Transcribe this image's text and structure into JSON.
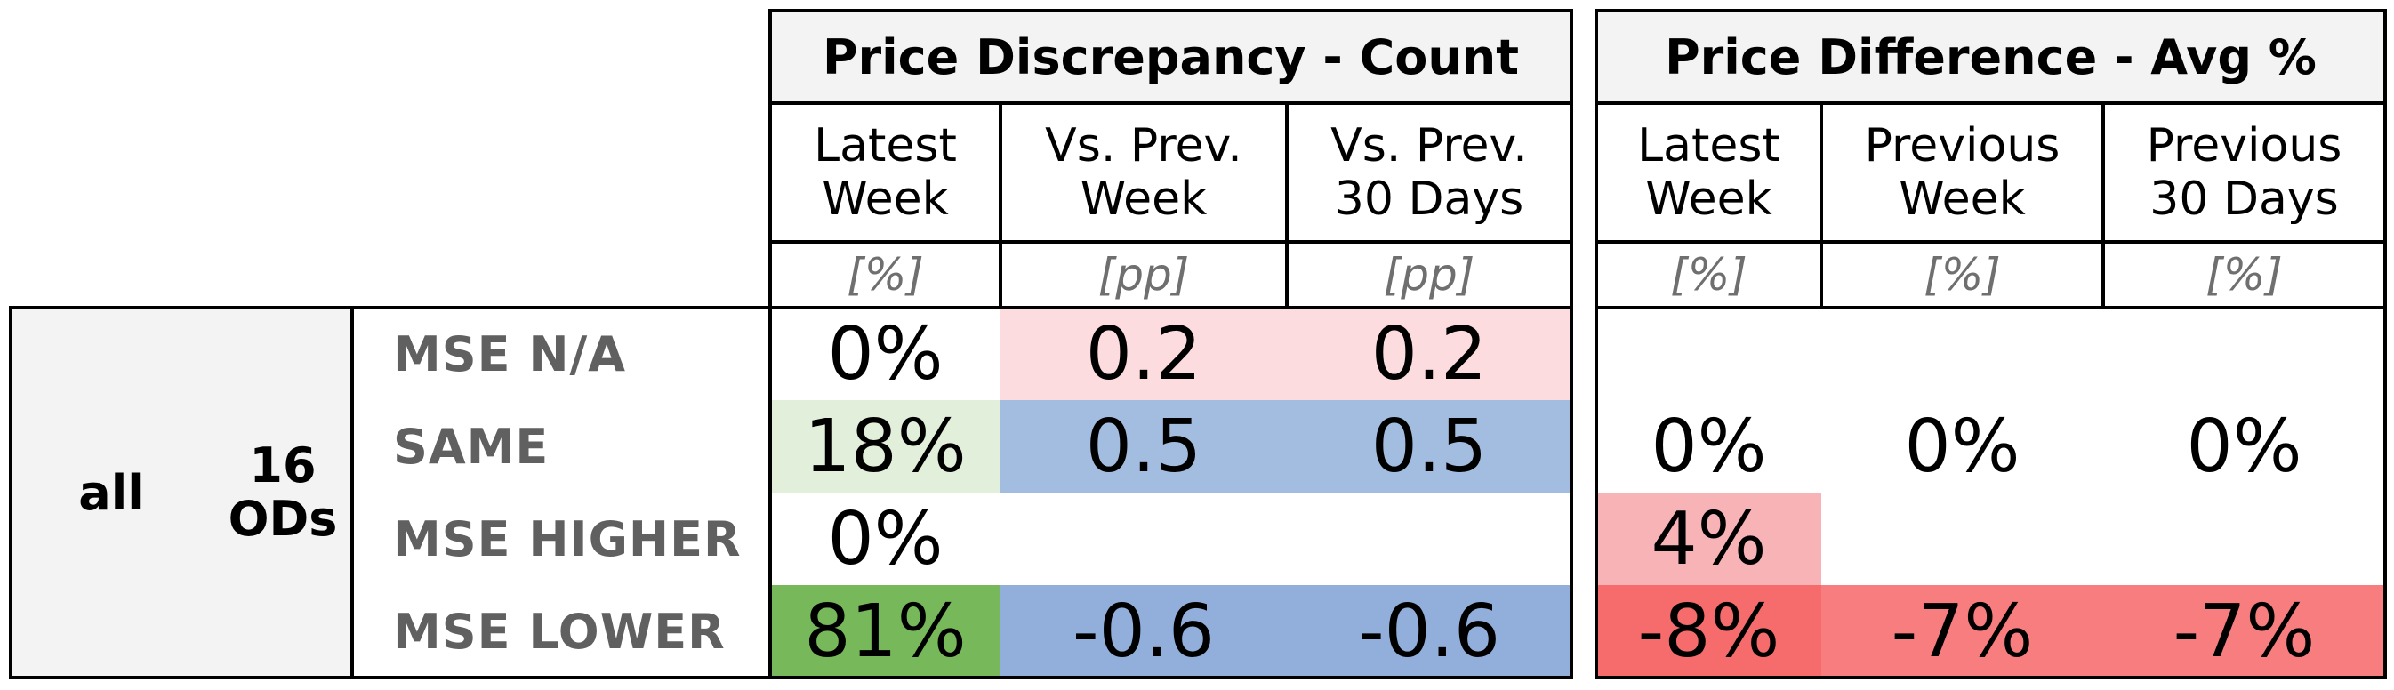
{
  "panels": [
    {
      "title": "Price Discrepancy - Count",
      "columns": [
        {
          "label": "Latest\nWeek",
          "unit": "[%]"
        },
        {
          "label": "Vs. Prev.\nWeek",
          "unit": "[pp]"
        },
        {
          "label": "Vs. Prev.\n30 Days",
          "unit": "[pp]"
        }
      ]
    },
    {
      "title": "Price Difference - Avg %",
      "columns": [
        {
          "label": "Latest\nWeek",
          "unit": "[%]"
        },
        {
          "label": "Previous\nWeek",
          "unit": "[%]"
        },
        {
          "label": "Previous\n30 Days",
          "unit": "[%]"
        }
      ]
    }
  ],
  "group": {
    "label": "all",
    "count": "16\nODs"
  },
  "rows": [
    {
      "label": "MSE N/A",
      "count": [
        {
          "text": "0%",
          "bg": "#ffffff"
        },
        {
          "text": "0.2",
          "bg": "#fcdcdf"
        },
        {
          "text": "0.2",
          "bg": "#fcdcdf"
        }
      ],
      "diff": [
        {
          "text": "",
          "bg": "#ffffff"
        },
        {
          "text": "",
          "bg": "#ffffff"
        },
        {
          "text": "",
          "bg": "#ffffff"
        }
      ]
    },
    {
      "label": "SAME",
      "count": [
        {
          "text": "18%",
          "bg": "#e2efdb"
        },
        {
          "text": "0.5",
          "bg": "#a3bde0"
        },
        {
          "text": "0.5",
          "bg": "#a3bde0"
        }
      ],
      "diff": [
        {
          "text": "0%",
          "bg": "#ffffff"
        },
        {
          "text": "0%",
          "bg": "#ffffff"
        },
        {
          "text": "0%",
          "bg": "#ffffff"
        }
      ]
    },
    {
      "label": "MSE HIGHER",
      "count": [
        {
          "text": "0%",
          "bg": "#ffffff"
        },
        {
          "text": "",
          "bg": "#ffffff"
        },
        {
          "text": "",
          "bg": "#ffffff"
        }
      ],
      "diff": [
        {
          "text": "4%",
          "bg": "#f8b3b6"
        },
        {
          "text": "",
          "bg": "#ffffff"
        },
        {
          "text": "",
          "bg": "#ffffff"
        }
      ]
    },
    {
      "label": "MSE LOWER",
      "count": [
        {
          "text": "81%",
          "bg": "#77b85a"
        },
        {
          "text": "-0.6",
          "bg": "#91afda"
        },
        {
          "text": "-0.6",
          "bg": "#91afda"
        }
      ],
      "diff": [
        {
          "text": "-8%",
          "bg": "#f66b6b"
        },
        {
          "text": "-7%",
          "bg": "#f77d7f"
        },
        {
          "text": "-7%",
          "bg": "#f77d7f"
        }
      ]
    }
  ],
  "chart_data": {
    "type": "table",
    "row_labels": [
      "MSE N/A",
      "SAME",
      "MSE HIGHER",
      "MSE LOWER"
    ],
    "series": [
      {
        "name": "Price Discrepancy - Count / Latest Week",
        "unit": "[%]",
        "values": [
          0,
          18,
          0,
          81
        ]
      },
      {
        "name": "Price Discrepancy - Count / Vs. Prev. Week",
        "unit": "[pp]",
        "values": [
          0.2,
          0.5,
          null,
          -0.6
        ]
      },
      {
        "name": "Price Discrepancy - Count / Vs. Prev. 30 Days",
        "unit": "[pp]",
        "values": [
          0.2,
          0.5,
          null,
          -0.6
        ]
      },
      {
        "name": "Price Difference - Avg % / Latest Week",
        "unit": "[%]",
        "values": [
          null,
          0,
          4,
          -8
        ]
      },
      {
        "name": "Price Difference - Avg % / Previous Week",
        "unit": "[%]",
        "values": [
          null,
          0,
          null,
          -7
        ]
      },
      {
        "name": "Price Difference - Avg % / Previous 30 Days",
        "unit": "[%]",
        "values": [
          null,
          0,
          null,
          -7
        ]
      }
    ]
  }
}
